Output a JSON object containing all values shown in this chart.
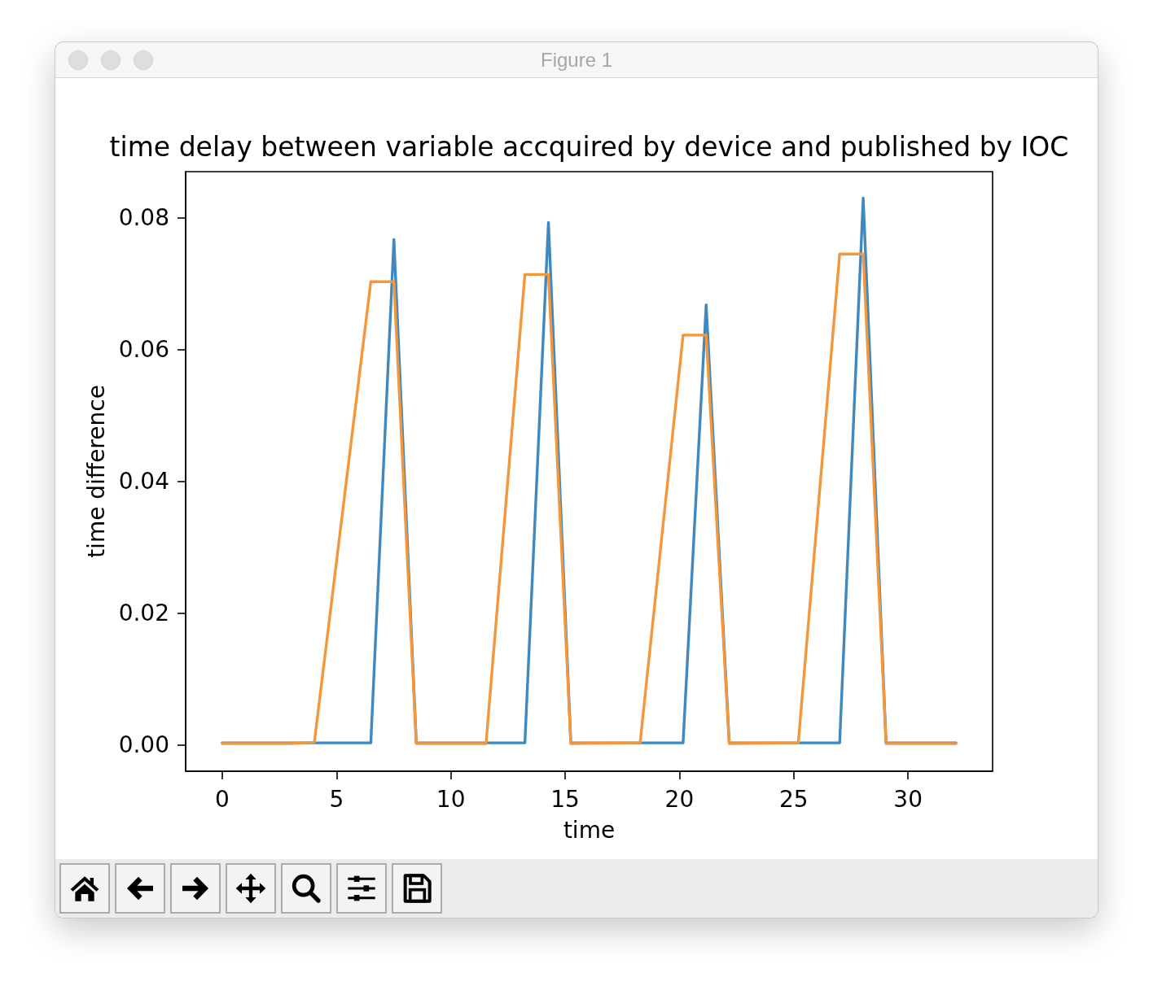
{
  "chart_data": {
    "type": "line",
    "title": "time delay between variable accquired by device and published by IOC",
    "xlabel": "time",
    "ylabel": "time difference",
    "annotations": [
      "Figure 1"
    ],
    "xlim": [
      -1.6,
      33.7
    ],
    "xticks": [
      0,
      5,
      10,
      15,
      20,
      25,
      30
    ],
    "ylim": [
      -0.004,
      0.087
    ],
    "yticks": [
      {
        "value": 0,
        "label": "0.00"
      },
      0.02,
      0.04,
      0.06,
      0.08
    ],
    "x": [
      0,
      3,
      4.03,
      6.5,
      7.51,
      8.49,
      11.54,
      13.24,
      14.27,
      15.25,
      18.28,
      20.16,
      21.17,
      22.18,
      25.2,
      27.01,
      28.04,
      29.04,
      32.1
    ],
    "series": [
      {
        "color": "#3f88c0",
        "values": [
          0.0003,
          0.0003,
          0.0003,
          0.0003,
          0.0767,
          0.0003,
          0.0003,
          0.0003,
          0.0793,
          0.0003,
          0.0003,
          0.0003,
          0.0668,
          0.0003,
          0.0003,
          0.0003,
          0.083,
          0.0003,
          0.0003
        ]
      },
      {
        "color": "#f3973a",
        "values": [
          0.0002,
          0.0002,
          0.0004,
          0.0703,
          0.0703,
          0.0002,
          0.0002,
          0.0714,
          0.0714,
          0.0002,
          0.0003,
          0.0622,
          0.0622,
          0.0002,
          0.0003,
          0.0745,
          0.0745,
          0.0002,
          0.0002
        ]
      }
    ]
  }
}
